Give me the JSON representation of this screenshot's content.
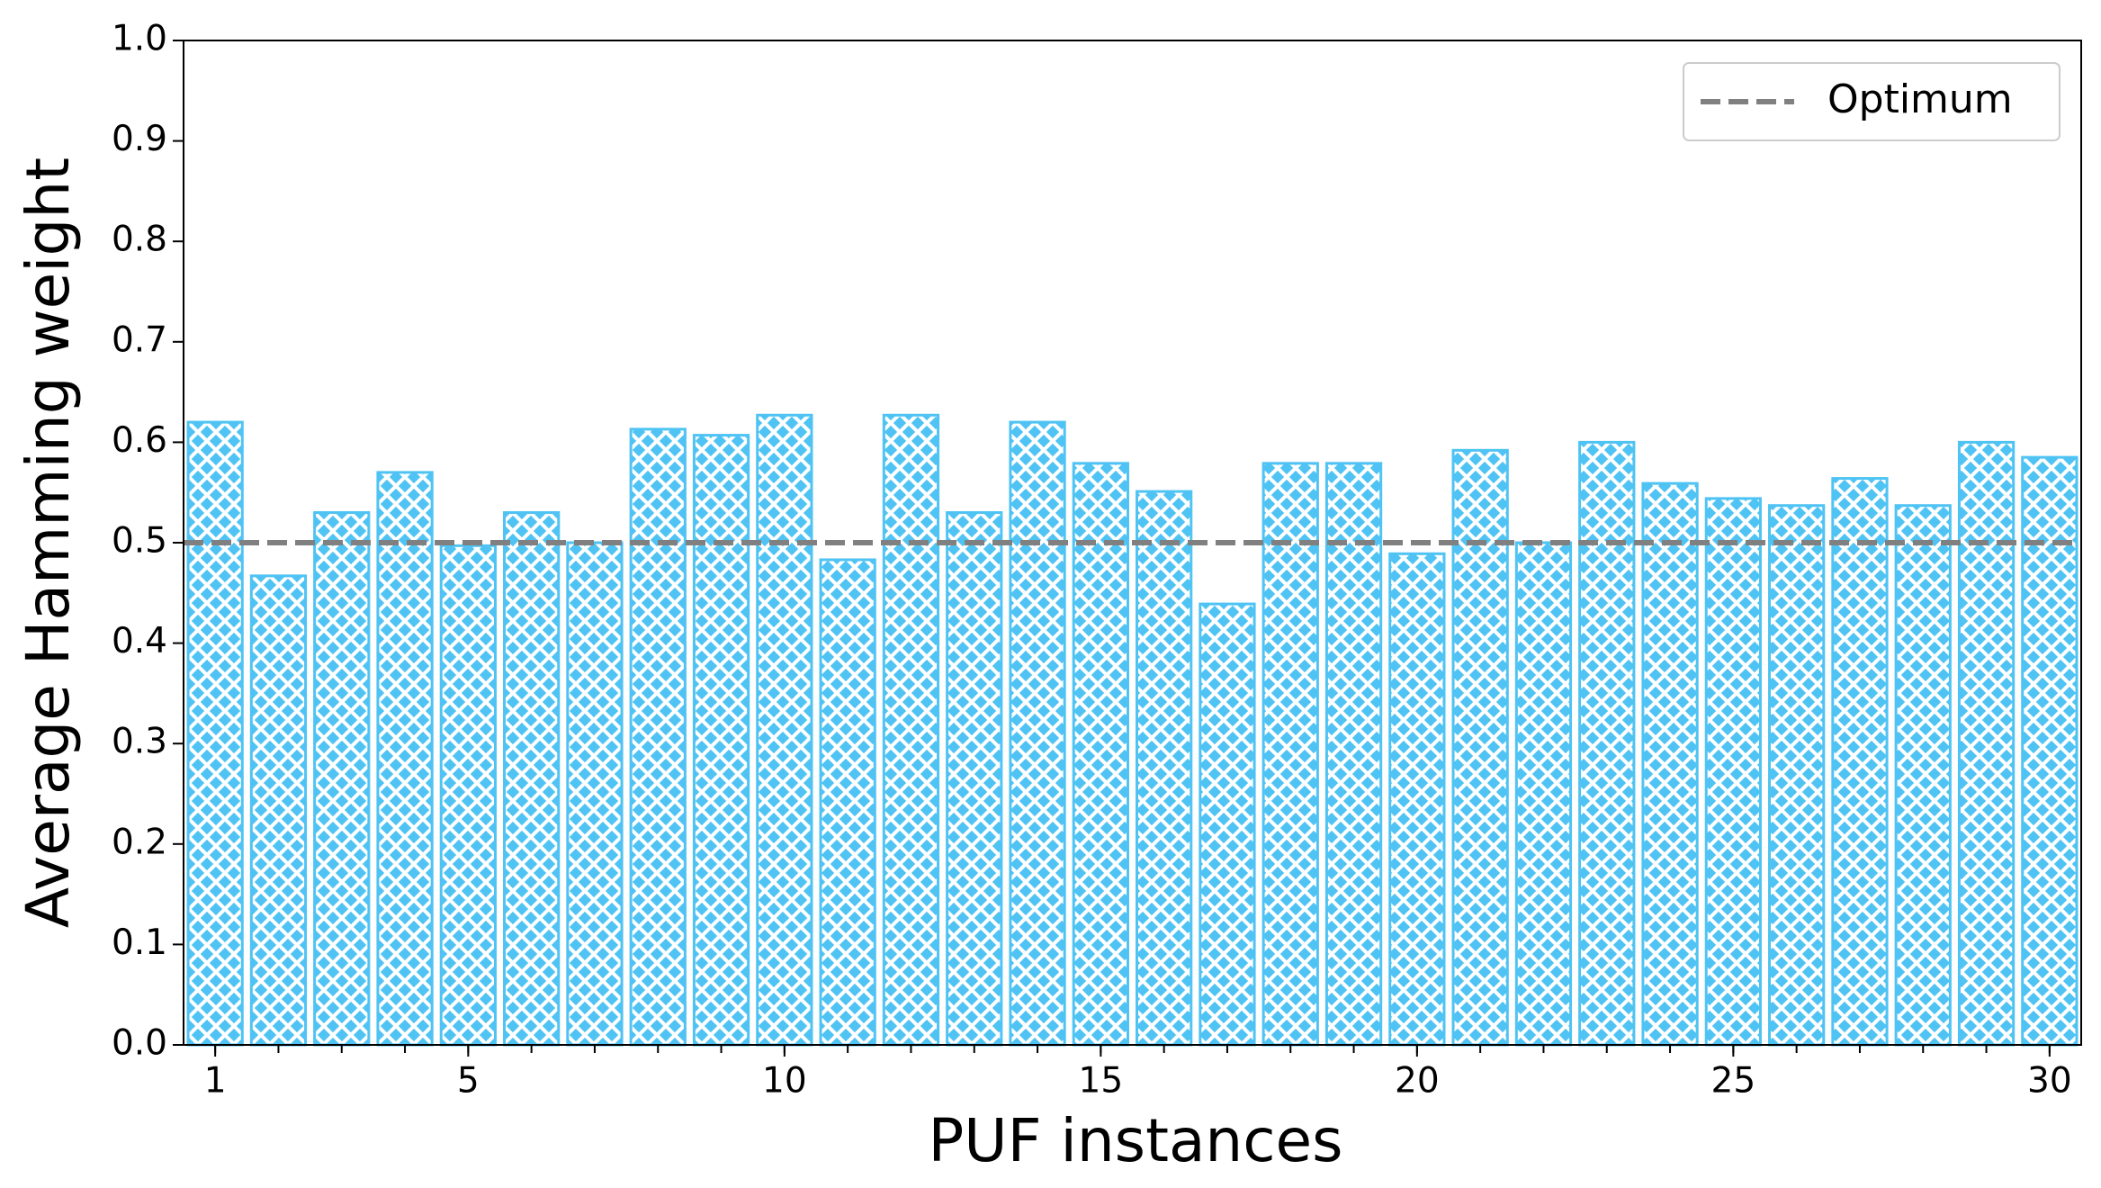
{
  "chart_data": {
    "type": "bar",
    "x_label": "PUF instances",
    "y_label": "Average Hamming weight",
    "x": [
      1,
      2,
      3,
      4,
      5,
      6,
      7,
      8,
      9,
      10,
      11,
      12,
      13,
      14,
      15,
      16,
      17,
      18,
      19,
      20,
      21,
      22,
      23,
      24,
      25,
      26,
      27,
      28,
      29,
      30
    ],
    "values": [
      0.62,
      0.467,
      0.53,
      0.57,
      0.497,
      0.53,
      0.5,
      0.613,
      0.607,
      0.627,
      0.483,
      0.627,
      0.53,
      0.62,
      0.579,
      0.551,
      0.439,
      0.579,
      0.579,
      0.489,
      0.592,
      0.5,
      0.6,
      0.559,
      0.544,
      0.537,
      0.564,
      0.537,
      0.6,
      0.585
    ],
    "color": "#4fc3f3",
    "hatch": "crosshatch",
    "xlim": [
      0.5,
      30.5
    ],
    "xticks": [
      1,
      5,
      10,
      15,
      20,
      25,
      30
    ],
    "ylim": [
      0,
      1
    ],
    "yticks": [
      {
        "value": 0,
        "label": "0.0"
      },
      {
        "value": 0.1,
        "label": "0.1"
      },
      {
        "value": 0.2,
        "label": "0.2"
      },
      {
        "value": 0.3,
        "label": "0.3"
      },
      {
        "value": 0.4,
        "label": "0.4"
      },
      {
        "value": 0.5,
        "label": "0.5"
      },
      {
        "value": 0.6,
        "label": "0.6"
      },
      {
        "value": 0.7,
        "label": "0.7"
      },
      {
        "value": 0.8,
        "label": "0.8"
      },
      {
        "value": 0.9,
        "label": "0.9"
      },
      {
        "value": 1,
        "label": "1.0"
      }
    ],
    "reference_line": {
      "name": "Optimum",
      "value": 0.5,
      "color": "#808080"
    },
    "legend": "upper right",
    "grid": false
  }
}
